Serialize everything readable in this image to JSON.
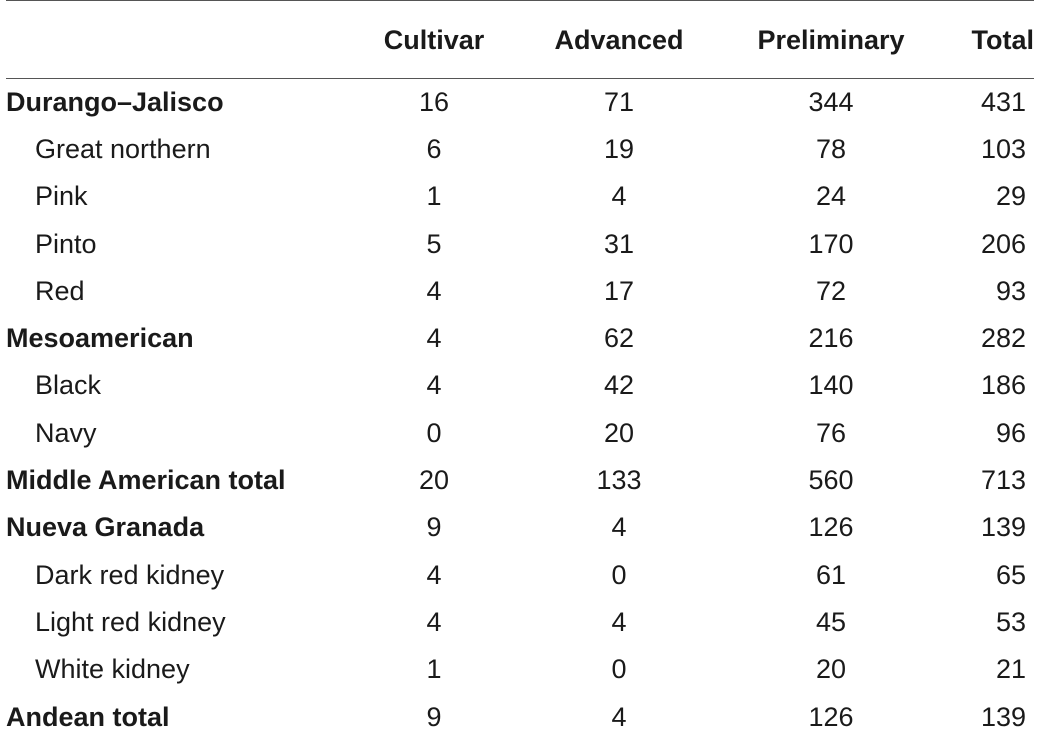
{
  "table": {
    "headers": [
      "",
      "Cultivar",
      "Advanced",
      "Preliminary",
      "Total"
    ],
    "rows": [
      {
        "label": "Durango–Jalisco",
        "type": "group",
        "cultivar": "16",
        "advanced": "71",
        "preliminary": "344",
        "total": "431"
      },
      {
        "label": "Great northern",
        "type": "sub",
        "cultivar": "6",
        "advanced": "19",
        "preliminary": "78",
        "total": "103"
      },
      {
        "label": "Pink",
        "type": "sub",
        "cultivar": "1",
        "advanced": "4",
        "preliminary": "24",
        "total": "29"
      },
      {
        "label": "Pinto",
        "type": "sub",
        "cultivar": "5",
        "advanced": "31",
        "preliminary": "170",
        "total": "206"
      },
      {
        "label": "Red",
        "type": "sub",
        "cultivar": "4",
        "advanced": "17",
        "preliminary": "72",
        "total": "93"
      },
      {
        "label": "Mesoamerican",
        "type": "group",
        "cultivar": "4",
        "advanced": "62",
        "preliminary": "216",
        "total": "282"
      },
      {
        "label": "Black",
        "type": "sub",
        "cultivar": "4",
        "advanced": "42",
        "preliminary": "140",
        "total": "186"
      },
      {
        "label": "Navy",
        "type": "sub",
        "cultivar": "0",
        "advanced": "20",
        "preliminary": "76",
        "total": "96"
      },
      {
        "label": "Middle American total",
        "type": "group",
        "cultivar": "20",
        "advanced": "133",
        "preliminary": "560",
        "total": "713"
      },
      {
        "label": "Nueva Granada",
        "type": "group",
        "cultivar": "9",
        "advanced": "4",
        "preliminary": "126",
        "total": "139"
      },
      {
        "label": "Dark red kidney",
        "type": "sub",
        "cultivar": "4",
        "advanced": "0",
        "preliminary": "61",
        "total": "65"
      },
      {
        "label": "Light red kidney",
        "type": "sub",
        "cultivar": "4",
        "advanced": "4",
        "preliminary": "45",
        "total": "53"
      },
      {
        "label": "White kidney",
        "type": "sub",
        "cultivar": "1",
        "advanced": "0",
        "preliminary": "20",
        "total": "21"
      },
      {
        "label": "Andean total",
        "type": "group",
        "cultivar": "9",
        "advanced": "4",
        "preliminary": "126",
        "total": "139"
      }
    ]
  }
}
